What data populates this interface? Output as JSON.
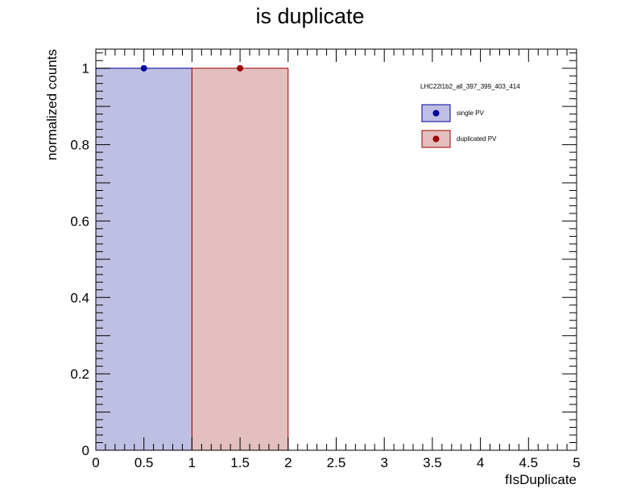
{
  "chart_data": {
    "type": "bar",
    "title": "is duplicate",
    "xlabel": "fIsDuplicate",
    "ylabel": "normalized counts",
    "xlim": [
      0,
      5
    ],
    "ylim": [
      0,
      1.05
    ],
    "x_ticks": [
      "0",
      "0.5",
      "1",
      "1.5",
      "2",
      "2.5",
      "3",
      "3.5",
      "4",
      "4.5",
      "5"
    ],
    "y_ticks": [
      "0",
      "0.2",
      "0.4",
      "0.6",
      "0.8",
      "1"
    ],
    "legend_header": "LHC22l1b2_all_397_399_403_414",
    "legend_position": "top-right",
    "grid": false,
    "series": [
      {
        "name": "single PV",
        "bins": [
          {
            "low": 0,
            "high": 1,
            "value": 1.0
          }
        ],
        "points": [
          {
            "x": 0.5,
            "y": 1.0
          }
        ],
        "fill_color": "#bfbfe3",
        "line_color": "#0000a0",
        "marker_color": "#00009a"
      },
      {
        "name": "duplicated PV",
        "bins": [
          {
            "low": 1,
            "high": 2,
            "value": 1.0
          }
        ],
        "points": [
          {
            "x": 1.5,
            "y": 1.0
          }
        ],
        "fill_color": "#e3bfbf",
        "line_color": "#a00000",
        "marker_color": "#9a0000"
      }
    ]
  }
}
